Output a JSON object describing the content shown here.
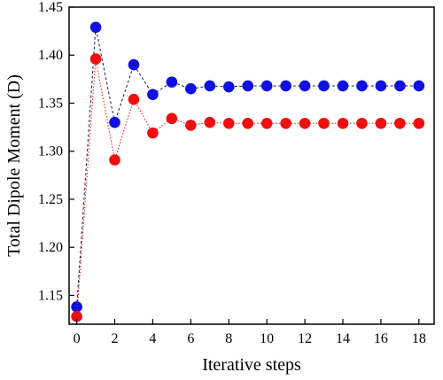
{
  "chart_data": {
    "type": "line",
    "title": "",
    "xlabel": "Iterative steps",
    "ylabel": "Total Dipole Moment (D)",
    "xlim": [
      -0.4,
      18.8
    ],
    "ylim": [
      1.12,
      1.45
    ],
    "xticks": [
      0,
      2,
      4,
      6,
      8,
      10,
      12,
      14,
      16,
      18
    ],
    "yticks": [
      1.15,
      1.2,
      1.25,
      1.3,
      1.35,
      1.4,
      1.45
    ],
    "ytick_labels": [
      "1.15",
      "1.20",
      "1.25",
      "1.30",
      "1.35",
      "1.40",
      "1.45"
    ],
    "grid": false,
    "legend": "none",
    "x": [
      0,
      1,
      2,
      3,
      4,
      5,
      6,
      7,
      8,
      9,
      10,
      11,
      12,
      13,
      14,
      15,
      16,
      17,
      18
    ],
    "series": [
      {
        "color": "#1010e0",
        "line_color": "#1a1a4a",
        "line_style": "dashed",
        "values": [
          1.138,
          1.429,
          1.33,
          1.39,
          1.359,
          1.372,
          1.365,
          1.368,
          1.367,
          1.368,
          1.368,
          1.368,
          1.368,
          1.368,
          1.368,
          1.368,
          1.368,
          1.368,
          1.368
        ]
      },
      {
        "color": "#ee1010",
        "line_color": "#ee1010",
        "line_style": "dotted",
        "values": [
          1.128,
          1.396,
          1.291,
          1.354,
          1.319,
          1.334,
          1.327,
          1.33,
          1.329,
          1.329,
          1.329,
          1.329,
          1.329,
          1.329,
          1.329,
          1.329,
          1.329,
          1.329,
          1.329
        ]
      }
    ]
  }
}
